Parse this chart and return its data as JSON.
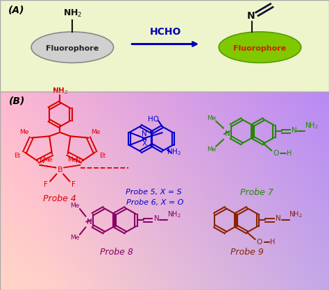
{
  "fig_width": 4.74,
  "fig_height": 4.18,
  "dpi": 100,
  "panel_A": {
    "bg_color": "#eef5cc",
    "label": "(A)",
    "reactant_fc": "#d0d0d0",
    "reactant_ec": "#888888",
    "product_fc": "#80c800",
    "product_ec": "#559900",
    "reactant_text": "Fluorophore",
    "product_text": "Fluorophore",
    "nh2_text": "NH₂",
    "arrow_text": "HCHO",
    "arrow_color": "#0000bb",
    "product_text_color": "#cc2200"
  },
  "panel_B": {
    "label": "(B)",
    "probe4_color": "#dd0000",
    "probe4_label": "Probe 4",
    "probe56_color": "#0000cc",
    "probe56_label1": "Probe 5, X = S",
    "probe56_label2": "Probe 6, X = O",
    "probe7_color": "#228800",
    "probe7_label": "Probe 7",
    "probe8_color": "#880066",
    "probe8_label": "Probe 8",
    "probe9_color": "#882200",
    "probe9_label": "Probe 9"
  }
}
